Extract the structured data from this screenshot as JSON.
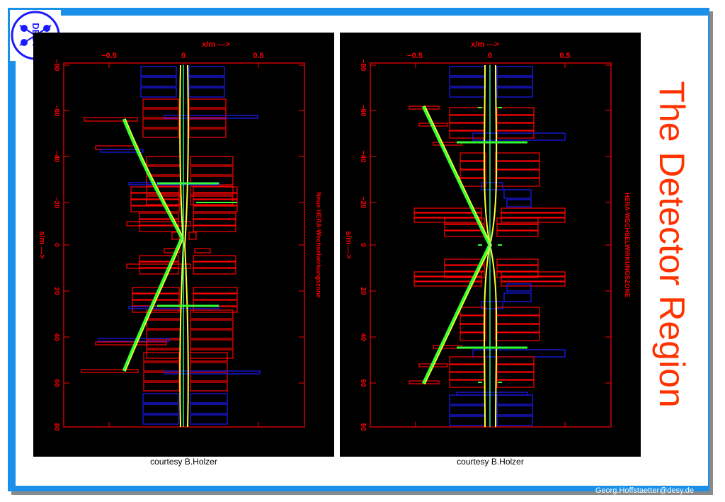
{
  "slide": {
    "title": "The Detector Region",
    "footer_email": "Georg.Hoffstaetter@desy.de",
    "logo_text": "DESY",
    "colors": {
      "frame": "#1a90e8",
      "title": "#ff3300",
      "axis": "#ff0000",
      "magnet_red": "#ff0000",
      "magnet_blue": "#1a1aff",
      "beam_yellow": "#ffff33",
      "beam_green": "#33ff33"
    }
  },
  "panels": [
    {
      "side_label": "Neue HERA-Wechselwirkungszone",
      "courtesy": "courtesy B.Holzer",
      "x_axis_label": "x/m   --->",
      "s_axis_label": "s/m   --->",
      "x_ticks": [
        "−0.5",
        "0",
        "0.5"
      ],
      "s_ticks": [
        "−80",
        "−60",
        "−40",
        "−20",
        "0",
        "20",
        "40",
        "60",
        "80"
      ]
    },
    {
      "side_label": "HERA-WECHSELWIRKUNGSZONE",
      "courtesy": "courtesy B.Holzer",
      "x_axis_label": "x/m   --->",
      "s_axis_label": "s/m   --->",
      "x_ticks": [
        "−0.5",
        "0",
        "0.5"
      ],
      "s_ticks": [
        "−80",
        "−60",
        "−40",
        "−20",
        "0",
        "20",
        "40",
        "60",
        "80"
      ]
    }
  ]
}
